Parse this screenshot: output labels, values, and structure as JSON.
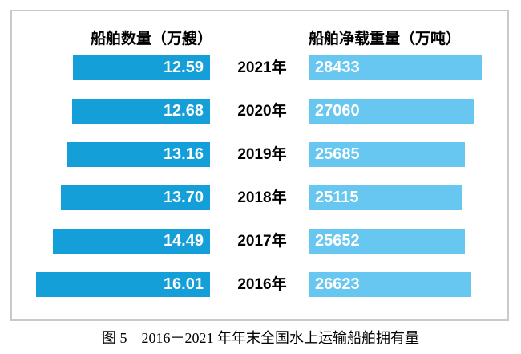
{
  "chart_data": {
    "type": "bar",
    "orientation": "horizontal",
    "layout": "butterfly",
    "title": "图 5　2016－2021 年年末全国水上运输船舶拥有量",
    "categories": [
      "2021年",
      "2020年",
      "2019年",
      "2018年",
      "2017年",
      "2016年"
    ],
    "series": [
      {
        "name": "船舶数量（万艘）",
        "side": "left",
        "values": [
          12.59,
          12.68,
          13.16,
          13.7,
          14.49,
          16.01
        ],
        "labels": [
          "12.59",
          "12.68",
          "13.16",
          "13.70",
          "14.49",
          "16.01"
        ],
        "color": "#149fd9",
        "value_label_position": "inside-end",
        "axis_min": 0
      },
      {
        "name": "船舶净载重量（万吨）",
        "side": "right",
        "values": [
          28433,
          27060,
          25685,
          25115,
          25652,
          26623
        ],
        "labels": [
          "28433",
          "27060",
          "25685",
          "25115",
          "25652",
          "26623"
        ],
        "color": "#68c7f1",
        "value_label_position": "inside-start",
        "axis_min": 0
      }
    ],
    "grid": false,
    "axes_visible": false,
    "legend_position": "top-as-headers"
  },
  "colors": {
    "left_bar": "#149fd9",
    "right_bar": "#68c7f1",
    "bar_value_text": "#ffffff",
    "label_text": "#000000",
    "panel_border": "#c9c9c9",
    "background": "#ffffff"
  }
}
